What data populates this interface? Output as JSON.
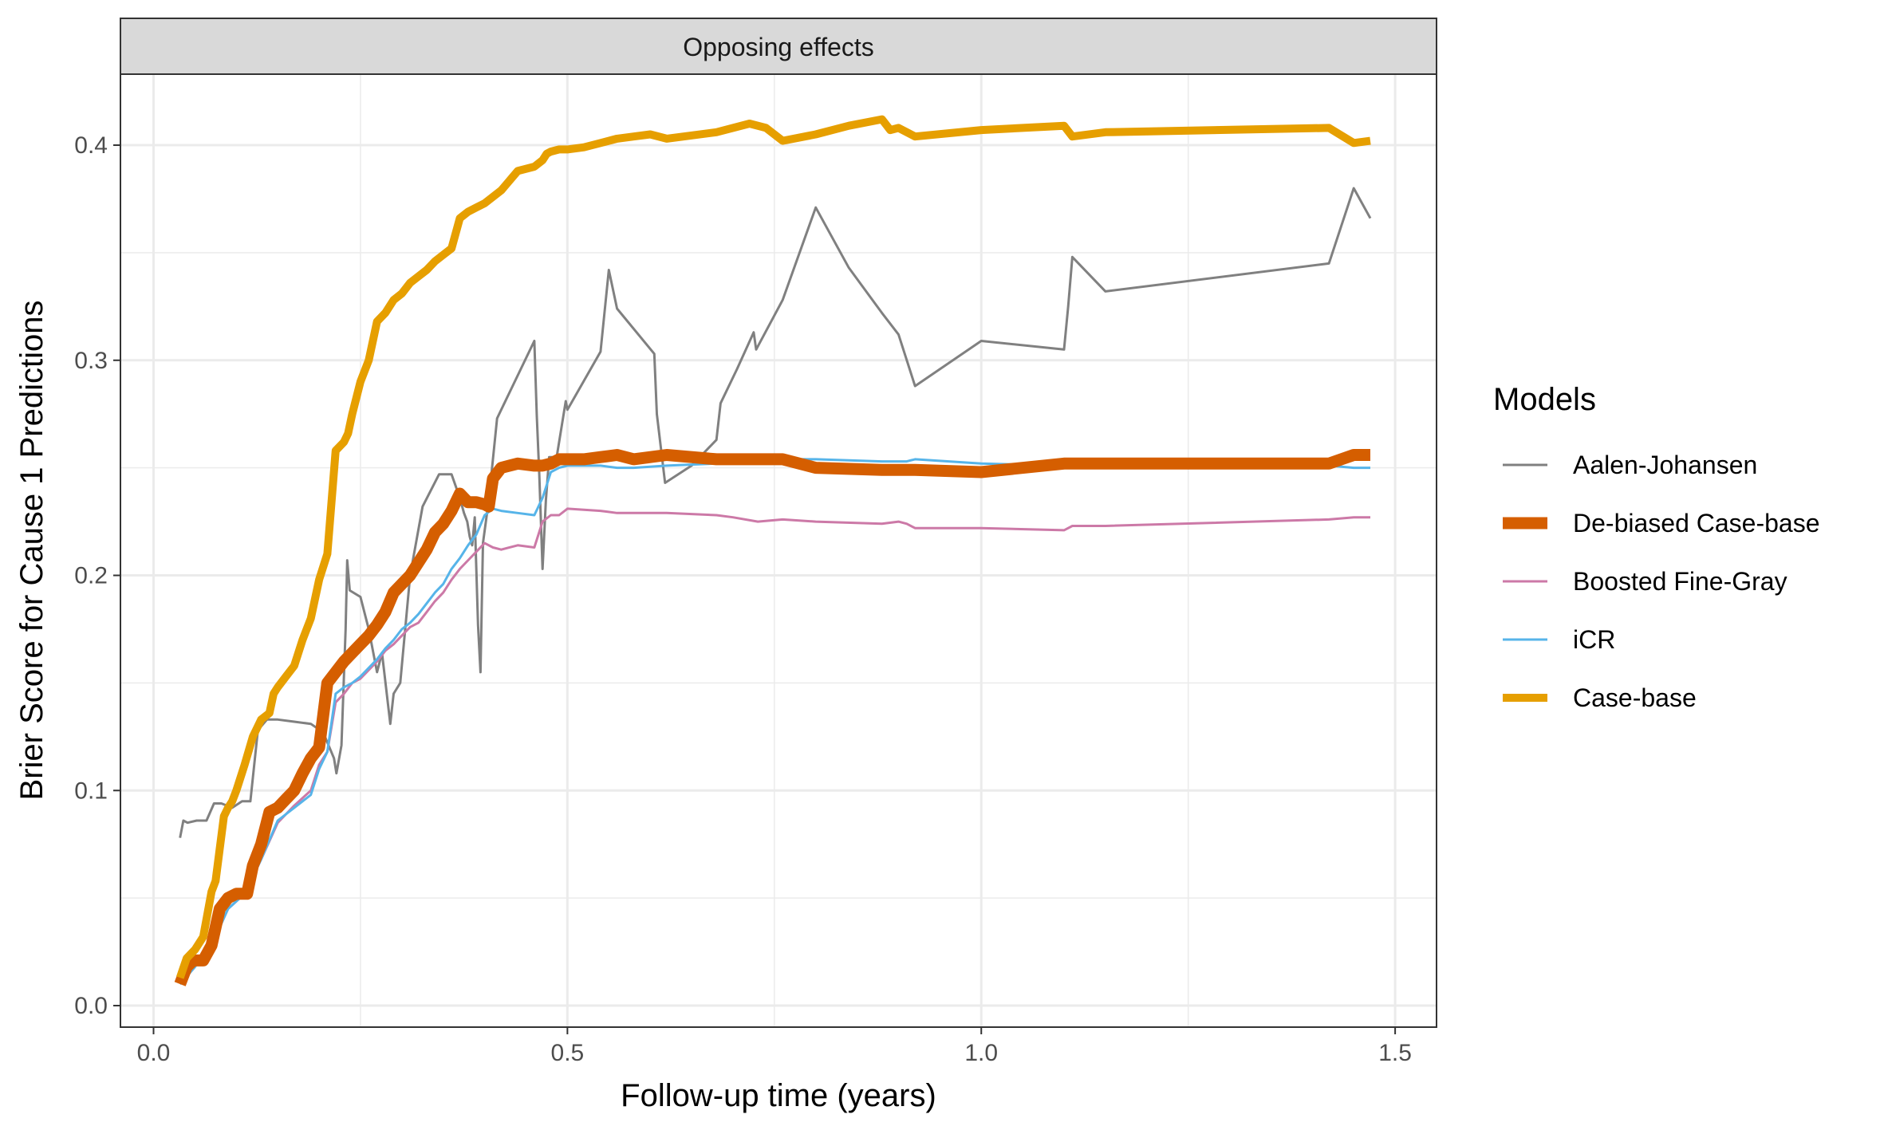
{
  "chart_data": {
    "type": "line",
    "strip_title": "Opposing effects",
    "xlabel": "Follow-up time (years)",
    "ylabel": "Brier Score for Cause 1 Predictions",
    "xlim": [
      -0.04,
      1.55
    ],
    "ylim": [
      -0.01,
      0.433
    ],
    "x_ticks": [
      0.0,
      0.5,
      1.0,
      1.5
    ],
    "x_tick_labels": [
      "0.0",
      "0.5",
      "1.0",
      "1.5"
    ],
    "y_ticks": [
      0.0,
      0.1,
      0.2,
      0.3,
      0.4
    ],
    "y_tick_labels": [
      "0.0",
      "0.1",
      "0.2",
      "0.3",
      "0.4"
    ],
    "grid": true,
    "legend": {
      "title": "Models",
      "position": "right"
    },
    "series": [
      {
        "name": "Aalen-Johansen",
        "color": "#808080",
        "line_width": 3,
        "x": [
          0.032,
          0.036,
          0.041,
          0.052,
          0.064,
          0.073,
          0.082,
          0.095,
          0.107,
          0.117,
          0.126,
          0.137,
          0.15,
          0.17,
          0.19,
          0.205,
          0.218,
          0.221,
          0.227,
          0.232,
          0.234,
          0.237,
          0.25,
          0.26,
          0.27,
          0.276,
          0.286,
          0.29,
          0.298,
          0.31,
          0.325,
          0.345,
          0.36,
          0.37,
          0.375,
          0.379,
          0.382,
          0.385,
          0.388,
          0.392,
          0.395,
          0.398,
          0.405,
          0.415,
          0.46,
          0.463,
          0.466,
          0.47,
          0.474,
          0.478,
          0.487,
          0.498,
          0.5,
          0.54,
          0.55,
          0.56,
          0.605,
          0.608,
          0.618,
          0.65,
          0.68,
          0.685,
          0.705,
          0.725,
          0.728,
          0.76,
          0.8,
          0.84,
          0.88,
          0.9,
          0.92,
          1.0,
          1.1,
          1.105,
          1.11,
          1.15,
          1.42,
          1.45,
          1.47
        ],
        "y": [
          0.078,
          0.086,
          0.085,
          0.086,
          0.086,
          0.094,
          0.094,
          0.092,
          0.095,
          0.095,
          0.128,
          0.133,
          0.133,
          0.132,
          0.131,
          0.127,
          0.115,
          0.108,
          0.121,
          0.175,
          0.207,
          0.193,
          0.19,
          0.175,
          0.155,
          0.164,
          0.131,
          0.145,
          0.15,
          0.2,
          0.232,
          0.247,
          0.247,
          0.236,
          0.229,
          0.225,
          0.218,
          0.214,
          0.227,
          0.177,
          0.155,
          0.215,
          0.235,
          0.273,
          0.309,
          0.274,
          0.247,
          0.203,
          0.235,
          0.255,
          0.255,
          0.281,
          0.277,
          0.304,
          0.342,
          0.324,
          0.303,
          0.275,
          0.243,
          0.251,
          0.263,
          0.28,
          0.296,
          0.313,
          0.305,
          0.328,
          0.371,
          0.343,
          0.322,
          0.312,
          0.288,
          0.309,
          0.305,
          0.325,
          0.348,
          0.332,
          0.345,
          0.38,
          0.366
        ]
      },
      {
        "name": "De-biased Case-base",
        "color": "#D55E00",
        "line_width": 15,
        "x": [
          0.032,
          0.04,
          0.048,
          0.06,
          0.07,
          0.08,
          0.09,
          0.1,
          0.113,
          0.12,
          0.13,
          0.14,
          0.15,
          0.16,
          0.17,
          0.18,
          0.19,
          0.2,
          0.21,
          0.22,
          0.23,
          0.24,
          0.25,
          0.26,
          0.27,
          0.28,
          0.29,
          0.3,
          0.31,
          0.32,
          0.33,
          0.34,
          0.35,
          0.36,
          0.37,
          0.38,
          0.39,
          0.4,
          0.405,
          0.41,
          0.42,
          0.44,
          0.46,
          0.47,
          0.48,
          0.49,
          0.5,
          0.52,
          0.54,
          0.56,
          0.58,
          0.62,
          0.68,
          0.7,
          0.74,
          0.76,
          0.8,
          0.88,
          0.9,
          0.92,
          1.0,
          1.1,
          1.11,
          1.15,
          1.42,
          1.45,
          1.47
        ],
        "y": [
          0.01,
          0.018,
          0.021,
          0.021,
          0.028,
          0.045,
          0.05,
          0.052,
          0.052,
          0.065,
          0.075,
          0.09,
          0.092,
          0.096,
          0.1,
          0.108,
          0.115,
          0.12,
          0.15,
          0.155,
          0.16,
          0.164,
          0.168,
          0.172,
          0.177,
          0.183,
          0.192,
          0.196,
          0.2,
          0.206,
          0.212,
          0.22,
          0.224,
          0.23,
          0.238,
          0.234,
          0.234,
          0.233,
          0.232,
          0.245,
          0.25,
          0.252,
          0.251,
          0.251,
          0.252,
          0.254,
          0.254,
          0.254,
          0.255,
          0.256,
          0.254,
          0.256,
          0.254,
          0.254,
          0.254,
          0.254,
          0.25,
          0.249,
          0.249,
          0.249,
          0.248,
          0.252,
          0.252,
          0.252,
          0.252,
          0.256,
          0.256
        ]
      },
      {
        "name": "Boosted Fine-Gray",
        "color": "#CC79A7",
        "line_width": 3,
        "x": [
          0.032,
          0.05,
          0.07,
          0.09,
          0.11,
          0.13,
          0.15,
          0.17,
          0.19,
          0.2,
          0.21,
          0.22,
          0.23,
          0.24,
          0.25,
          0.26,
          0.27,
          0.28,
          0.29,
          0.3,
          0.31,
          0.32,
          0.33,
          0.34,
          0.35,
          0.36,
          0.37,
          0.38,
          0.39,
          0.4,
          0.41,
          0.42,
          0.44,
          0.46,
          0.47,
          0.48,
          0.49,
          0.5,
          0.54,
          0.56,
          0.58,
          0.62,
          0.68,
          0.7,
          0.73,
          0.76,
          0.8,
          0.88,
          0.9,
          0.91,
          0.92,
          1.0,
          1.1,
          1.11,
          1.15,
          1.42,
          1.45,
          1.47
        ],
        "y": [
          0.01,
          0.018,
          0.028,
          0.045,
          0.052,
          0.068,
          0.085,
          0.093,
          0.1,
          0.112,
          0.118,
          0.141,
          0.145,
          0.15,
          0.152,
          0.156,
          0.16,
          0.165,
          0.168,
          0.172,
          0.176,
          0.178,
          0.183,
          0.188,
          0.192,
          0.198,
          0.203,
          0.207,
          0.211,
          0.215,
          0.213,
          0.212,
          0.214,
          0.213,
          0.225,
          0.228,
          0.228,
          0.231,
          0.23,
          0.229,
          0.229,
          0.229,
          0.228,
          0.227,
          0.225,
          0.226,
          0.225,
          0.224,
          0.225,
          0.224,
          0.222,
          0.222,
          0.221,
          0.223,
          0.223,
          0.226,
          0.227,
          0.227
        ]
      },
      {
        "name": "iCR",
        "color": "#56B4E9",
        "line_width": 3,
        "x": [
          0.032,
          0.05,
          0.07,
          0.09,
          0.11,
          0.13,
          0.15,
          0.17,
          0.19,
          0.2,
          0.21,
          0.22,
          0.23,
          0.24,
          0.25,
          0.26,
          0.27,
          0.28,
          0.29,
          0.3,
          0.31,
          0.32,
          0.33,
          0.34,
          0.35,
          0.36,
          0.37,
          0.38,
          0.39,
          0.4,
          0.41,
          0.42,
          0.44,
          0.46,
          0.47,
          0.48,
          0.49,
          0.5,
          0.54,
          0.56,
          0.58,
          0.62,
          0.68,
          0.7,
          0.73,
          0.76,
          0.8,
          0.88,
          0.9,
          0.91,
          0.92,
          1.0,
          1.1,
          1.11,
          1.15,
          1.42,
          1.45,
          1.47
        ],
        "y": [
          0.01,
          0.018,
          0.028,
          0.045,
          0.052,
          0.068,
          0.086,
          0.092,
          0.098,
          0.11,
          0.118,
          0.145,
          0.148,
          0.15,
          0.153,
          0.157,
          0.161,
          0.166,
          0.17,
          0.175,
          0.178,
          0.182,
          0.187,
          0.192,
          0.196,
          0.203,
          0.208,
          0.214,
          0.219,
          0.228,
          0.231,
          0.23,
          0.229,
          0.228,
          0.236,
          0.248,
          0.25,
          0.251,
          0.251,
          0.25,
          0.25,
          0.251,
          0.252,
          0.252,
          0.253,
          0.254,
          0.254,
          0.253,
          0.253,
          0.253,
          0.254,
          0.252,
          0.251,
          0.251,
          0.251,
          0.251,
          0.25,
          0.25
        ]
      },
      {
        "name": "Case-base",
        "color": "#E69F00",
        "line_width": 10,
        "x": [
          0.032,
          0.04,
          0.05,
          0.06,
          0.07,
          0.075,
          0.085,
          0.09,
          0.095,
          0.1,
          0.11,
          0.12,
          0.13,
          0.14,
          0.145,
          0.15,
          0.16,
          0.17,
          0.18,
          0.19,
          0.2,
          0.21,
          0.22,
          0.23,
          0.235,
          0.24,
          0.25,
          0.26,
          0.27,
          0.28,
          0.29,
          0.3,
          0.31,
          0.32,
          0.33,
          0.34,
          0.35,
          0.36,
          0.37,
          0.38,
          0.39,
          0.4,
          0.41,
          0.42,
          0.44,
          0.46,
          0.47,
          0.475,
          0.48,
          0.49,
          0.5,
          0.52,
          0.54,
          0.56,
          0.58,
          0.6,
          0.62,
          0.68,
          0.72,
          0.74,
          0.76,
          0.8,
          0.84,
          0.88,
          0.89,
          0.9,
          0.92,
          1.0,
          1.1,
          1.11,
          1.15,
          1.42,
          1.45,
          1.47
        ],
        "y": [
          0.013,
          0.022,
          0.026,
          0.032,
          0.053,
          0.058,
          0.088,
          0.092,
          0.095,
          0.1,
          0.112,
          0.125,
          0.133,
          0.136,
          0.145,
          0.148,
          0.153,
          0.158,
          0.17,
          0.18,
          0.198,
          0.21,
          0.258,
          0.262,
          0.266,
          0.275,
          0.29,
          0.3,
          0.318,
          0.322,
          0.328,
          0.331,
          0.336,
          0.339,
          0.342,
          0.346,
          0.349,
          0.352,
          0.366,
          0.369,
          0.371,
          0.373,
          0.376,
          0.379,
          0.388,
          0.39,
          0.393,
          0.396,
          0.397,
          0.398,
          0.398,
          0.399,
          0.401,
          0.403,
          0.404,
          0.405,
          0.403,
          0.406,
          0.41,
          0.408,
          0.402,
          0.405,
          0.409,
          0.412,
          0.407,
          0.408,
          0.404,
          0.407,
          0.409,
          0.404,
          0.406,
          0.408,
          0.401,
          0.402
        ]
      }
    ]
  }
}
